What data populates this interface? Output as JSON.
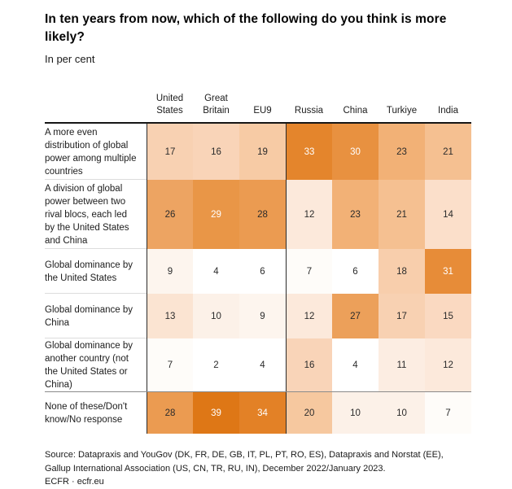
{
  "chart_data": {
    "type": "heatmap",
    "title": "In ten years from now, which of the following do you think is more likely?",
    "unit": "In per cent",
    "columns": [
      "United States",
      "Great Britain",
      "EU9",
      "Russia",
      "China",
      "Turkiye",
      "India"
    ],
    "rows": [
      {
        "label": "A more even distribution of global power among multiple countries",
        "values": [
          17,
          16,
          19,
          33,
          30,
          23,
          21
        ]
      },
      {
        "label": "A division of global power between two rival blocs, each led by the United States and China",
        "values": [
          26,
          29,
          28,
          12,
          23,
          21,
          14
        ]
      },
      {
        "label": "Global dominance by the United States",
        "values": [
          9,
          4,
          6,
          7,
          6,
          18,
          31
        ]
      },
      {
        "label": "Global dominance by China",
        "values": [
          13,
          10,
          9,
          12,
          27,
          17,
          15
        ]
      },
      {
        "label": "Global dominance by another country (not the United States or China)",
        "values": [
          7,
          2,
          4,
          16,
          4,
          11,
          12
        ]
      },
      {
        "label": "None of these/Don't know/No response",
        "values": [
          28,
          39,
          34,
          20,
          10,
          10,
          7
        ]
      }
    ],
    "value_range": [
      0,
      39
    ],
    "color_scale": {
      "stops": [
        [
          0,
          "#ffffff"
        ],
        [
          6,
          "#ffffff"
        ],
        [
          10,
          "#fcf1e8"
        ],
        [
          12,
          "#fce9db"
        ],
        [
          16,
          "#f9d4b8"
        ],
        [
          20,
          "#f6c89f"
        ],
        [
          23,
          "#f2b176"
        ],
        [
          26,
          "#eda462"
        ],
        [
          28,
          "#eb9b51"
        ],
        [
          29,
          "#e99647"
        ],
        [
          31,
          "#e78c38"
        ],
        [
          34,
          "#e38126"
        ],
        [
          39,
          "#de7716"
        ]
      ],
      "white_text_min": 29,
      "dark_text_color": "#2b2b2b",
      "light_text_color": "#ffffff"
    },
    "layout": {
      "grid": false,
      "legend": "none"
    }
  },
  "footer": {
    "source": "Source: Datapraxis and YouGov (DK, FR, DE, GB, IT, PL, PT, RO, ES), Datapraxis and Norstat (EE), Gallup International Association (US, CN, TR, RU, IN), December 2022/January 2023.",
    "brand": "ECFR · ecfr.eu"
  }
}
